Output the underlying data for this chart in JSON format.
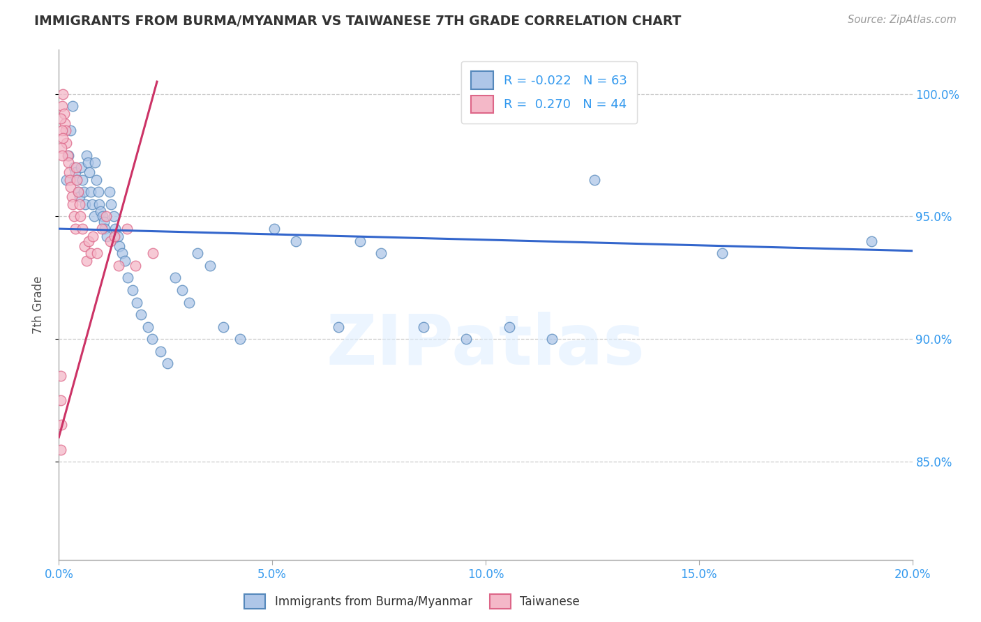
{
  "title": "IMMIGRANTS FROM BURMA/MYANMAR VS TAIWANESE 7TH GRADE CORRELATION CHART",
  "source": "Source: ZipAtlas.com",
  "ylabel": "7th Grade",
  "watermark": "ZIPatlas",
  "blue_label": "Immigrants from Burma/Myanmar",
  "pink_label": "Taiwanese",
  "blue_R": -0.022,
  "blue_N": 63,
  "pink_R": 0.27,
  "pink_N": 44,
  "xlim": [
    0.0,
    20.0
  ],
  "ylim": [
    81.0,
    101.8
  ],
  "yticks": [
    85.0,
    90.0,
    95.0,
    100.0
  ],
  "xticks": [
    0.0,
    5.0,
    10.0,
    15.0,
    20.0
  ],
  "blue_color": "#aec6e8",
  "blue_edge_color": "#5588bb",
  "blue_line_color": "#3366cc",
  "pink_color": "#f4b8c8",
  "pink_edge_color": "#dd6688",
  "pink_line_color": "#cc3366",
  "blue_x": [
    0.18,
    0.22,
    0.28,
    0.32,
    0.35,
    0.38,
    0.42,
    0.45,
    0.48,
    0.52,
    0.55,
    0.58,
    0.62,
    0.65,
    0.68,
    0.72,
    0.75,
    0.78,
    0.82,
    0.85,
    0.88,
    0.92,
    0.95,
    0.98,
    1.02,
    1.05,
    1.08,
    1.12,
    1.18,
    1.22,
    1.28,
    1.32,
    1.38,
    1.42,
    1.48,
    1.55,
    1.62,
    1.72,
    1.82,
    1.92,
    2.08,
    2.18,
    2.38,
    2.55,
    2.72,
    2.88,
    3.05,
    3.25,
    3.55,
    3.85,
    4.25,
    5.05,
    5.55,
    6.55,
    7.05,
    7.55,
    8.55,
    9.55,
    10.55,
    11.55,
    12.55,
    15.55,
    19.05
  ],
  "blue_y": [
    96.5,
    97.5,
    98.5,
    99.5,
    97.0,
    96.8,
    96.5,
    96.0,
    95.8,
    97.0,
    96.5,
    96.0,
    95.5,
    97.5,
    97.2,
    96.8,
    96.0,
    95.5,
    95.0,
    97.2,
    96.5,
    96.0,
    95.5,
    95.2,
    95.0,
    94.8,
    94.5,
    94.2,
    96.0,
    95.5,
    95.0,
    94.5,
    94.2,
    93.8,
    93.5,
    93.2,
    92.5,
    92.0,
    91.5,
    91.0,
    90.5,
    90.0,
    89.5,
    89.0,
    92.5,
    92.0,
    91.5,
    93.5,
    93.0,
    90.5,
    90.0,
    94.5,
    94.0,
    90.5,
    94.0,
    93.5,
    90.5,
    90.0,
    90.5,
    90.0,
    96.5,
    93.5,
    94.0
  ],
  "pink_x": [
    0.04,
    0.06,
    0.08,
    0.1,
    0.12,
    0.14,
    0.16,
    0.18,
    0.2,
    0.22,
    0.24,
    0.26,
    0.28,
    0.3,
    0.32,
    0.35,
    0.38,
    0.4,
    0.42,
    0.45,
    0.48,
    0.5,
    0.55,
    0.6,
    0.65,
    0.7,
    0.75,
    0.8,
    0.9,
    1.0,
    1.1,
    1.2,
    1.3,
    1.4,
    1.6,
    1.8,
    2.2,
    0.05,
    0.07,
    0.09,
    0.06,
    0.08,
    0.04,
    0.05
  ],
  "pink_y": [
    85.5,
    86.5,
    99.5,
    100.0,
    99.2,
    98.8,
    98.5,
    98.0,
    97.5,
    97.2,
    96.8,
    96.5,
    96.2,
    95.8,
    95.5,
    95.0,
    94.5,
    97.0,
    96.5,
    96.0,
    95.5,
    95.0,
    94.5,
    93.8,
    93.2,
    94.0,
    93.5,
    94.2,
    93.5,
    94.5,
    95.0,
    94.0,
    94.2,
    93.0,
    94.5,
    93.0,
    93.5,
    99.0,
    98.5,
    98.2,
    97.8,
    97.5,
    87.5,
    88.5
  ],
  "blue_trend_x": [
    0.0,
    20.0
  ],
  "blue_trend_y": [
    94.5,
    93.6
  ],
  "pink_trend_x": [
    0.0,
    2.3
  ],
  "pink_trend_y": [
    86.0,
    100.5
  ]
}
